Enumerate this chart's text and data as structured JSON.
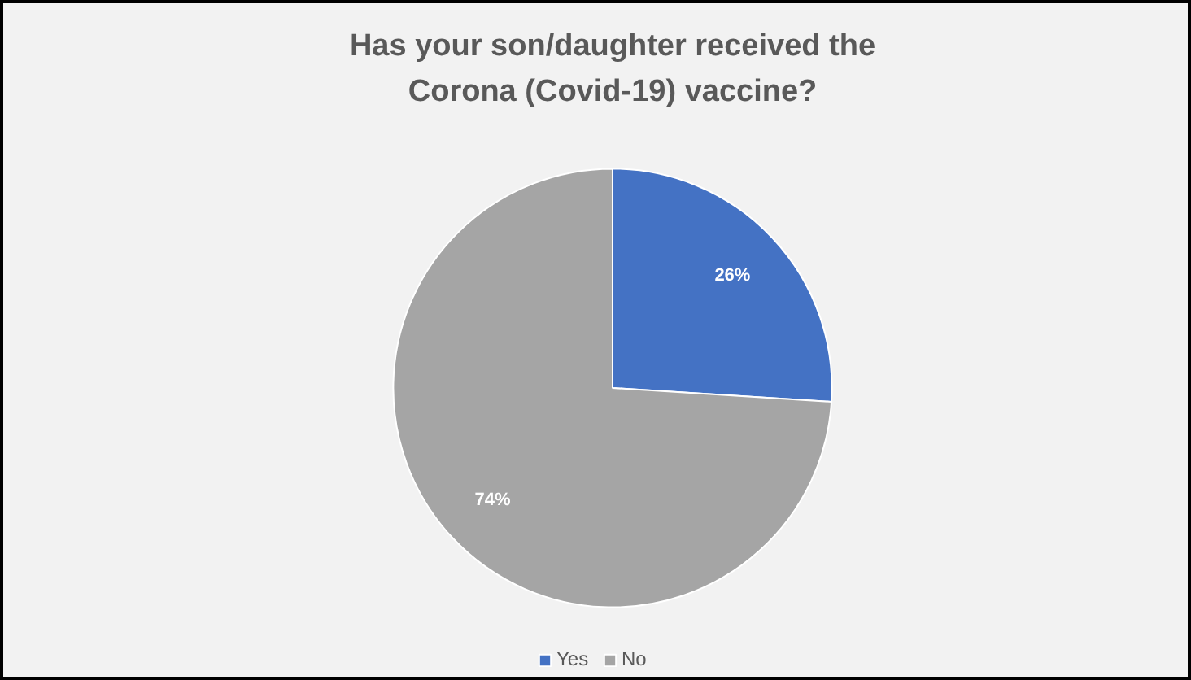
{
  "chart_data": {
    "type": "pie",
    "title": "Has your son/daughter received the Corona (Covid-19) vaccine?",
    "categories": [
      "Yes",
      "No"
    ],
    "values": [
      26,
      74
    ],
    "colors": [
      "#4472c4",
      "#a5a5a5"
    ],
    "value_labels": [
      "26%",
      "74%"
    ],
    "legend": "bottom"
  }
}
